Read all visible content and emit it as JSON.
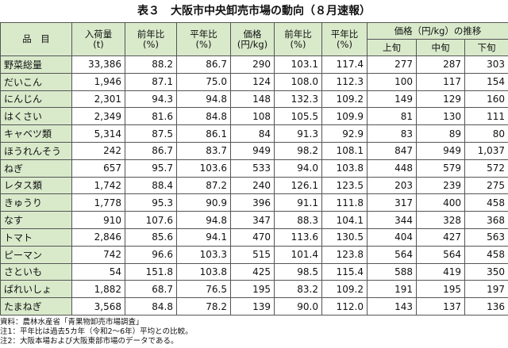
{
  "title": "表３　大阪市中央卸売市場の動向（８月速報）",
  "table": {
    "columns": [
      [
        "品　目"
      ],
      [
        "入荷量",
        "(t)"
      ],
      [
        "前年比",
        "(%)"
      ],
      [
        "平年比",
        "(%)"
      ],
      [
        "価格",
        "(円/kg)"
      ],
      [
        "前年比",
        "(%)"
      ],
      [
        "平年比",
        "(%)"
      ]
    ],
    "group": "価格（円/kg）の推移",
    "subcolumns": [
      "上旬",
      "中旬",
      "下旬"
    ],
    "rows": [
      [
        "野菜総量",
        "33,386",
        "88.2",
        "86.7",
        "290",
        "103.1",
        "117.4",
        "277",
        "287",
        "303"
      ],
      [
        "だいこん",
        "1,946",
        "87.1",
        "75.0",
        "124",
        "108.0",
        "112.3",
        "100",
        "117",
        "154"
      ],
      [
        "にんじん",
        "2,301",
        "94.3",
        "94.8",
        "148",
        "132.3",
        "109.2",
        "149",
        "129",
        "160"
      ],
      [
        "はくさい",
        "2,349",
        "81.6",
        "84.8",
        "108",
        "105.5",
        "109.9",
        "81",
        "130",
        "111"
      ],
      [
        "キャベツ類",
        "5,314",
        "87.5",
        "86.1",
        "84",
        "91.3",
        "92.9",
        "83",
        "89",
        "80"
      ],
      [
        "ほうれんそう",
        "242",
        "86.7",
        "83.7",
        "949",
        "98.2",
        "108.1",
        "847",
        "949",
        "1,037"
      ],
      [
        "ねぎ",
        "657",
        "95.7",
        "103.6",
        "533",
        "94.0",
        "103.8",
        "448",
        "579",
        "572"
      ],
      [
        "レタス類",
        "1,742",
        "88.4",
        "87.2",
        "240",
        "126.1",
        "123.5",
        "203",
        "239",
        "275"
      ],
      [
        "きゅうり",
        "1,778",
        "95.3",
        "90.9",
        "396",
        "91.1",
        "111.8",
        "317",
        "400",
        "458"
      ],
      [
        "なす",
        "910",
        "107.6",
        "94.8",
        "347",
        "88.3",
        "104.1",
        "344",
        "328",
        "368"
      ],
      [
        "トマト",
        "2,846",
        "85.6",
        "94.1",
        "470",
        "113.6",
        "130.5",
        "404",
        "427",
        "563"
      ],
      [
        "ピーマン",
        "742",
        "96.6",
        "103.3",
        "515",
        "101.4",
        "123.8",
        "564",
        "564",
        "458"
      ],
      [
        "さといも",
        "54",
        "151.8",
        "103.8",
        "425",
        "98.5",
        "115.4",
        "588",
        "419",
        "350"
      ],
      [
        "ばれいしょ",
        "1,882",
        "68.7",
        "76.5",
        "195",
        "83.2",
        "109.2",
        "191",
        "195",
        "197"
      ],
      [
        "たまねぎ",
        "3,568",
        "84.8",
        "78.2",
        "139",
        "90.0",
        "112.0",
        "143",
        "137",
        "136"
      ]
    ]
  },
  "notes": [
    "資料：農林水産省「青果物卸売市場調査」",
    "注1：平年比は過去5カ年（令和2〜6年）平均との比較。",
    "注2：大阪本場および大阪東部市場のデータである。"
  ]
}
